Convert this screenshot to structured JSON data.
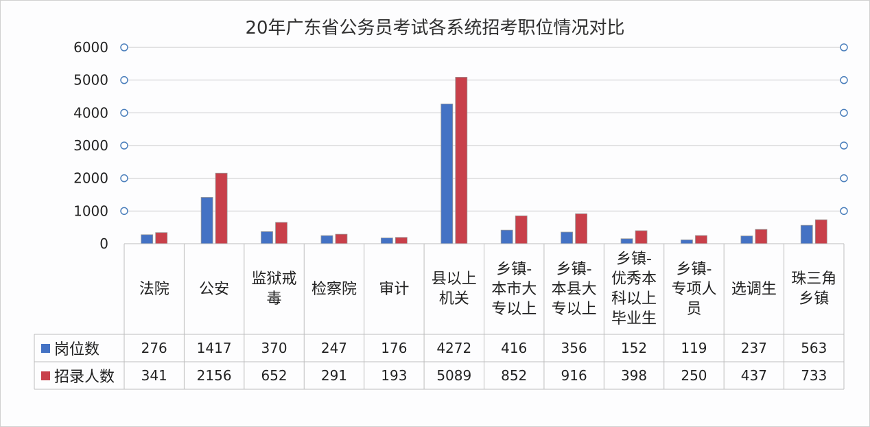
{
  "chart_data": {
    "type": "bar",
    "title": "20年广东省公务员考试各系统招考职位情况对比",
    "categories": [
      "法院",
      "公安",
      "监狱戒毒",
      "检察院",
      "审计",
      "县以上机关",
      "乡镇-本市大专以上",
      "乡镇-本县大专以上",
      "乡镇-优秀本科以上毕业生",
      "乡镇-专项人员",
      "选调生",
      "珠三角乡镇"
    ],
    "category_lines": [
      [
        "法院"
      ],
      [
        "公安"
      ],
      [
        "监狱戒",
        "毒"
      ],
      [
        "检察院"
      ],
      [
        "审计"
      ],
      [
        "县以上",
        "机关"
      ],
      [
        "乡镇-",
        "本市大",
        "专以上"
      ],
      [
        "乡镇-",
        "本县大",
        "专以上"
      ],
      [
        "乡镇-",
        "优秀本",
        "科以上",
        "毕业生"
      ],
      [
        "乡镇-",
        "专项人",
        "员"
      ],
      [
        "选调生"
      ],
      [
        "珠三角",
        "乡镇"
      ]
    ],
    "series": [
      {
        "name": "岗位数",
        "color": "#4472C4",
        "values": [
          276,
          1417,
          370,
          247,
          176,
          4272,
          416,
          356,
          152,
          119,
          237,
          563
        ],
        "labels": [
          "276",
          "1417",
          "370",
          "247",
          "176",
          "4272",
          "416",
          "356",
          "152",
          "119",
          "237",
          "563"
        ]
      },
      {
        "name": "招录人数",
        "color": "#C8404A",
        "values": [
          341,
          2156,
          652,
          291,
          193,
          5089,
          852,
          916,
          398,
          250,
          437,
          733
        ],
        "labels": [
          "341",
          "2156",
          "652",
          "291",
          "193",
          "5089",
          "852",
          "916",
          "398",
          "250",
          "437",
          "733"
        ]
      }
    ],
    "ylim": [
      0,
      6000
    ],
    "yticks": [
      0,
      1000,
      2000,
      3000,
      4000,
      5000,
      6000
    ],
    "ytick_labels": [
      "0",
      "1000",
      "2000",
      "3000",
      "4000",
      "5000",
      "6000"
    ],
    "grid": true,
    "legend": "data-table"
  }
}
